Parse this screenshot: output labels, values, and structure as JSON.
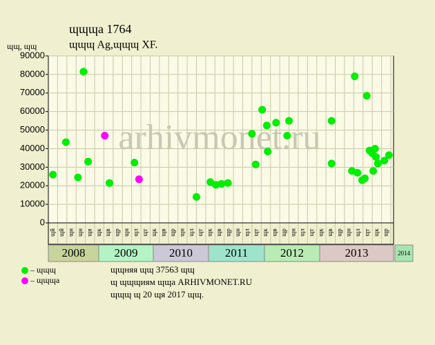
{
  "chart_data": {
    "type": "scatter",
    "title": "ɰɰɰа 1764",
    "subtitle": "ɰɰɰ Ag,ɰɰɰ XF.",
    "y_label": "ɰɰ, ɰɰ",
    "watermark": "arhivmonet.ru",
    "xlim": [
      0,
      37.3
    ],
    "ylim": [
      0,
      90000
    ],
    "yticks": [
      0,
      10000,
      20000,
      30000,
      40000,
      50000,
      60000,
      70000,
      80000,
      90000
    ],
    "grid": true,
    "column_labels": [
      "ɰй",
      "ɰй",
      "ɰн",
      "ɰн",
      "ɰя",
      "ɰк",
      "ɰв",
      "ɰр",
      "ɰн",
      "ɰл",
      "ɰт",
      "ɰк",
      "ɰв",
      "ɰр",
      "ɰн",
      "ɰл",
      "ɰт",
      "ɰк",
      "ɰв",
      "ɰр",
      "ɰн",
      "ɰл",
      "ɰт",
      "ɰк",
      "ɰв",
      "ɰр",
      "ɰн",
      "ɰл",
      "ɰт",
      "ɰк",
      "ɰв",
      "ɰр",
      "ɰн",
      "ɰл",
      "ɰт",
      "ɰк",
      "ɰр"
    ],
    "year_labels": [
      "2008",
      "2009",
      "2010",
      "2011",
      "2012",
      "2013",
      "2014"
    ],
    "series": [
      {
        "name": "– ɰɰɰ",
        "color": "#00ee00",
        "x": [
          0.5,
          1.9,
          3.2,
          3.8,
          4.3,
          6.6,
          9.3,
          16.0,
          17.5,
          18.1,
          18.7,
          19.4,
          22.0,
          22.4,
          23.1,
          23.6,
          23.7,
          24.6,
          25.8,
          26.0,
          30.6,
          30.6,
          32.8,
          33.1,
          33.4,
          33.9,
          34.2,
          34.4,
          34.7,
          35.0,
          35.1,
          35.3,
          35.4,
          35.6,
          36.3,
          36.8
        ],
        "values": [
          26000,
          43500,
          24500,
          81500,
          33000,
          21500,
          32500,
          14000,
          22000,
          20500,
          21000,
          21500,
          48000,
          31500,
          61000,
          52500,
          38500,
          54000,
          47000,
          55000,
          55000,
          32000,
          28000,
          79000,
          27000,
          23000,
          24000,
          68500,
          39000,
          37500,
          28000,
          40000,
          35500,
          32000,
          33500,
          36500
        ]
      },
      {
        "name": "– ɰɰɰа",
        "color": "#ff00ff",
        "x": [
          6.1,
          9.8
        ],
        "values": [
          47000,
          23500
        ]
      }
    ],
    "notes": [
      "ɰɰняя ɰɰ 37563 ɰɰ",
      "ɰ ɰɰɰиям ɰɰа ARHIVMONET.RU",
      "ɰɰɰ ɰ 20 ɰя 2017 ɰɰ."
    ]
  }
}
